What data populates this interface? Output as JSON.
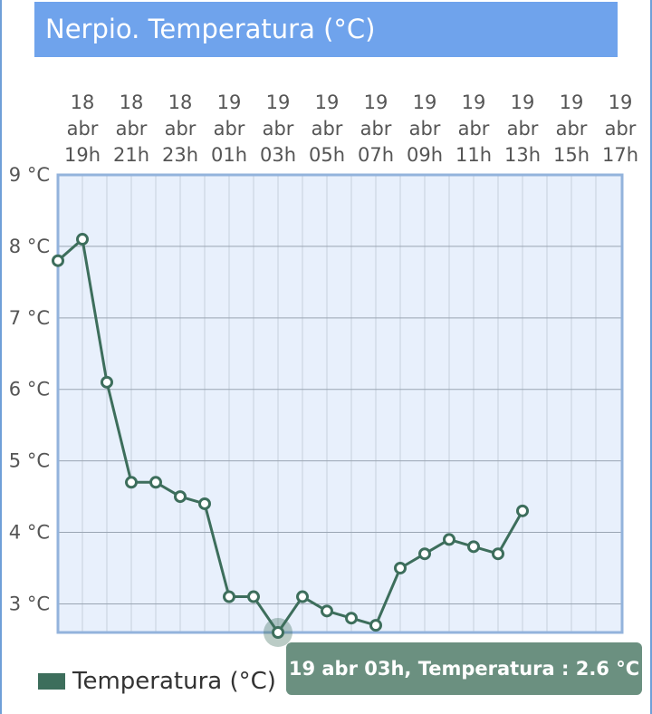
{
  "title": "Nerpio. Temperatura (°C)",
  "legend": {
    "label": "Temperatura (°C)"
  },
  "tooltip": {
    "text": "19 abr 03h, Temperatura : 2.6 °C"
  },
  "colors": {
    "title_bg": "#6fa3ec",
    "plot_bg": "#e8f0fc",
    "line": "#3d6e5c",
    "tooltip_bg": "#6b9080"
  },
  "chart_data": {
    "type": "line",
    "title": "Nerpio. Temperatura (°C)",
    "x_ticks": [
      [
        "18",
        "abr",
        "19h"
      ],
      [
        "18",
        "abr",
        "21h"
      ],
      [
        "18",
        "abr",
        "23h"
      ],
      [
        "19",
        "abr",
        "01h"
      ],
      [
        "19",
        "abr",
        "03h"
      ],
      [
        "19",
        "abr",
        "05h"
      ],
      [
        "19",
        "abr",
        "07h"
      ],
      [
        "19",
        "abr",
        "09h"
      ],
      [
        "19",
        "abr",
        "11h"
      ],
      [
        "19",
        "abr",
        "13h"
      ],
      [
        "19",
        "abr",
        "15h"
      ],
      [
        "19",
        "abr",
        "17h"
      ]
    ],
    "y_ticks": [
      "3 °C",
      "4 °C",
      "5 °C",
      "6 °C",
      "7 °C",
      "8 °C",
      "9 °C"
    ],
    "ylim": [
      2.6,
      9
    ],
    "grid": true,
    "legend_position": "bottom-left",
    "series": [
      {
        "name": "Temperatura (°C)",
        "x": [
          "18 abr 18h",
          "18 abr 19h",
          "18 abr 20h",
          "18 abr 21h",
          "18 abr 22h",
          "18 abr 23h",
          "19 abr 00h",
          "19 abr 01h",
          "19 abr 02h",
          "19 abr 03h",
          "19 abr 04h",
          "19 abr 05h",
          "19 abr 06h",
          "19 abr 07h",
          "19 abr 08h",
          "19 abr 09h",
          "19 abr 10h",
          "19 abr 11h",
          "19 abr 12h",
          "19 abr 13h"
        ],
        "values": [
          7.8,
          8.1,
          6.1,
          4.7,
          4.7,
          4.5,
          4.4,
          3.1,
          3.1,
          2.6,
          3.1,
          2.9,
          2.8,
          2.7,
          3.5,
          3.7,
          3.9,
          3.8,
          3.7,
          4.3
        ]
      }
    ],
    "highlighted_point": {
      "x": "19 abr 03h",
      "value": 2.6
    }
  }
}
